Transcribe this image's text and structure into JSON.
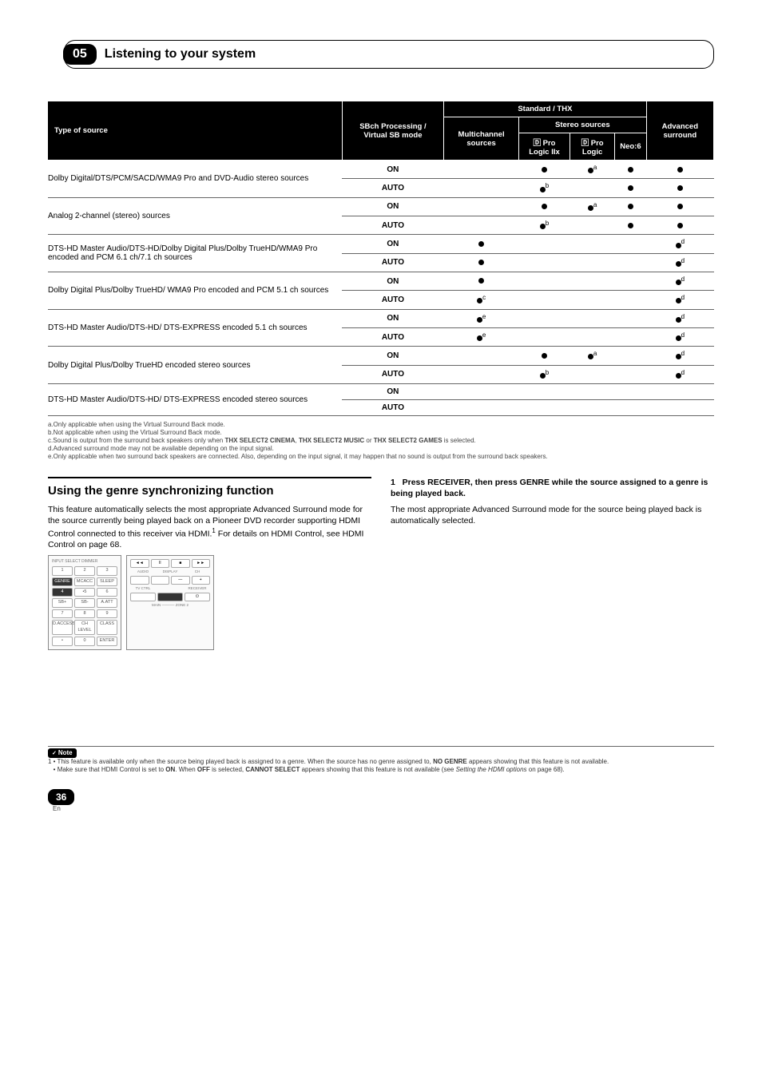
{
  "chapter": {
    "num": "05",
    "title": "Listening to your system"
  },
  "table": {
    "head": {
      "type_of_source": "Type of source",
      "sbch": "SBch Processing / Virtual SB mode",
      "std_thx": "Standard / THX",
      "multichannel": "Multichannel sources",
      "stereo_sources": "Stereo sources",
      "pl2x": "🄳 Pro Logic IIx",
      "pl": "🄳 Pro Logic",
      "neo6": "Neo:6",
      "advanced": "Advanced surround"
    },
    "rows": [
      {
        "src": "Dolby Digital/DTS/PCM/SACD/WMA9 Pro and DVD-Audio stereo sources",
        "modes": [
          {
            "m": "ON",
            "mc": "",
            "p2": "●",
            "pl": "●a",
            "n6": "●",
            "adv": "●"
          },
          {
            "m": "AUTO",
            "mc": "",
            "p2": "●b",
            "pl": "",
            "n6": "●",
            "adv": "●"
          }
        ]
      },
      {
        "src": "Analog 2-channel (stereo) sources",
        "modes": [
          {
            "m": "ON",
            "mc": "",
            "p2": "●",
            "pl": "●a",
            "n6": "●",
            "adv": "●"
          },
          {
            "m": "AUTO",
            "mc": "",
            "p2": "●b",
            "pl": "",
            "n6": "●",
            "adv": "●"
          }
        ]
      },
      {
        "src": "DTS-HD Master Audio/DTS-HD/Dolby Digital Plus/Dolby TrueHD/WMA9 Pro encoded and PCM 6.1 ch/7.1 ch sources",
        "modes": [
          {
            "m": "ON",
            "mc": "●",
            "p2": "",
            "pl": "",
            "n6": "",
            "adv": "●d"
          },
          {
            "m": "AUTO",
            "mc": "●",
            "p2": "",
            "pl": "",
            "n6": "",
            "adv": "●d"
          }
        ]
      },
      {
        "src": "Dolby Digital Plus/Dolby TrueHD/ WMA9 Pro encoded and PCM 5.1 ch sources",
        "modes": [
          {
            "m": "ON",
            "mc": "●",
            "p2": "",
            "pl": "",
            "n6": "",
            "adv": "●d"
          },
          {
            "m": "AUTO",
            "mc": "●c",
            "p2": "",
            "pl": "",
            "n6": "",
            "adv": "●d"
          }
        ]
      },
      {
        "src": "DTS-HD Master Audio/DTS-HD/ DTS-EXPRESS encoded 5.1 ch sources",
        "modes": [
          {
            "m": "ON",
            "mc": "●e",
            "p2": "",
            "pl": "",
            "n6": "",
            "adv": "●d"
          },
          {
            "m": "AUTO",
            "mc": "●e",
            "p2": "",
            "pl": "",
            "n6": "",
            "adv": "●d"
          }
        ]
      },
      {
        "src": "Dolby Digital Plus/Dolby TrueHD encoded stereo sources",
        "modes": [
          {
            "m": "ON",
            "mc": "",
            "p2": "●",
            "pl": "●a",
            "n6": "",
            "adv": "●d"
          },
          {
            "m": "AUTO",
            "mc": "",
            "p2": "●b",
            "pl": "",
            "n6": "",
            "adv": "●d"
          }
        ]
      },
      {
        "src": "DTS-HD Master Audio/DTS-HD/ DTS-EXPRESS encoded stereo sources",
        "modes": [
          {
            "m": "ON",
            "mc": "",
            "p2": "",
            "pl": "",
            "n6": "",
            "adv": ""
          },
          {
            "m": "AUTO",
            "mc": "",
            "p2": "",
            "pl": "",
            "n6": "",
            "adv": ""
          }
        ]
      }
    ],
    "footnotes": {
      "a": "a.Only applicable when using the Virtual Surround Back mode.",
      "b": "b.Not applicable when using the Virtual Surround Back mode.",
      "c": "c.Sound is output from the surround back speakers only when THX SELECT2 CINEMA, THX SELECT2 MUSIC or THX SELECT2 GAMES is selected.",
      "d": "d.Advanced surround mode may not be available depending on the input signal.",
      "e": "e.Only applicable when two surround back speakers are connected. Also, depending on the input signal, it may happen that no sound is output from the surround back speakers."
    }
  },
  "section": {
    "title": "Using the genre synchronizing function",
    "body1": "This feature automatically selects the most appropriate Advanced Surround mode for the source currently being played back on a Pioneer DVD recorder supporting HDMI Control connected to this receiver via HDMI.",
    "body1_sup": "1",
    "body1_tail": " For details on HDMI Control, see HDMI Control on page 68.",
    "step_num": "1",
    "step_title": "Press RECEIVER, then press GENRE while the source assigned to a genre is being played back.",
    "step_body": "The most appropriate Advanced Surround mode for the source being played back is automatically selected."
  },
  "remote_left": {
    "top_label": "INPUT SELECT",
    "dimmer": "DIMMER",
    "rows": [
      [
        "1",
        "2",
        "3"
      ],
      [
        "GENRE",
        "MCACC",
        "SLEEP"
      ],
      [
        "4",
        "•5",
        "6"
      ],
      [
        "SB+",
        "SB-",
        "A.ATT"
      ],
      [
        "7",
        "8",
        "9"
      ],
      [
        "D.ACCESS",
        "CH LEVEL",
        "CLASS"
      ],
      [
        "•",
        "0",
        "ENTER"
      ]
    ]
  },
  "remote_right": {
    "row1": [
      "◄◄",
      "II",
      "■",
      "►►"
    ],
    "labels1": [
      "AUDIO",
      "DISPLAY",
      "CH"
    ],
    "row2": [
      "",
      "",
      "—",
      "+"
    ],
    "row2b_label_l": "TV CTRL",
    "row2b_label_r": "RECEIVER",
    "row2b": [
      "",
      "",
      "⏻"
    ],
    "bottom": "MAIN ───── ZONE 2"
  },
  "note": {
    "label": "Note",
    "n1": "1 • This feature is available only when the source being played back is assigned to a genre. When the source has no genre assigned to, NO GENRE appears showing that this feature is not available.",
    "n2": "• Make sure that HDMI Control is set to ON. When OFF is selected, CANNOT SELECT appears showing that this feature is not available (see Setting the HDMI options on page 68)."
  },
  "page": {
    "num": "36",
    "lang": "En"
  }
}
